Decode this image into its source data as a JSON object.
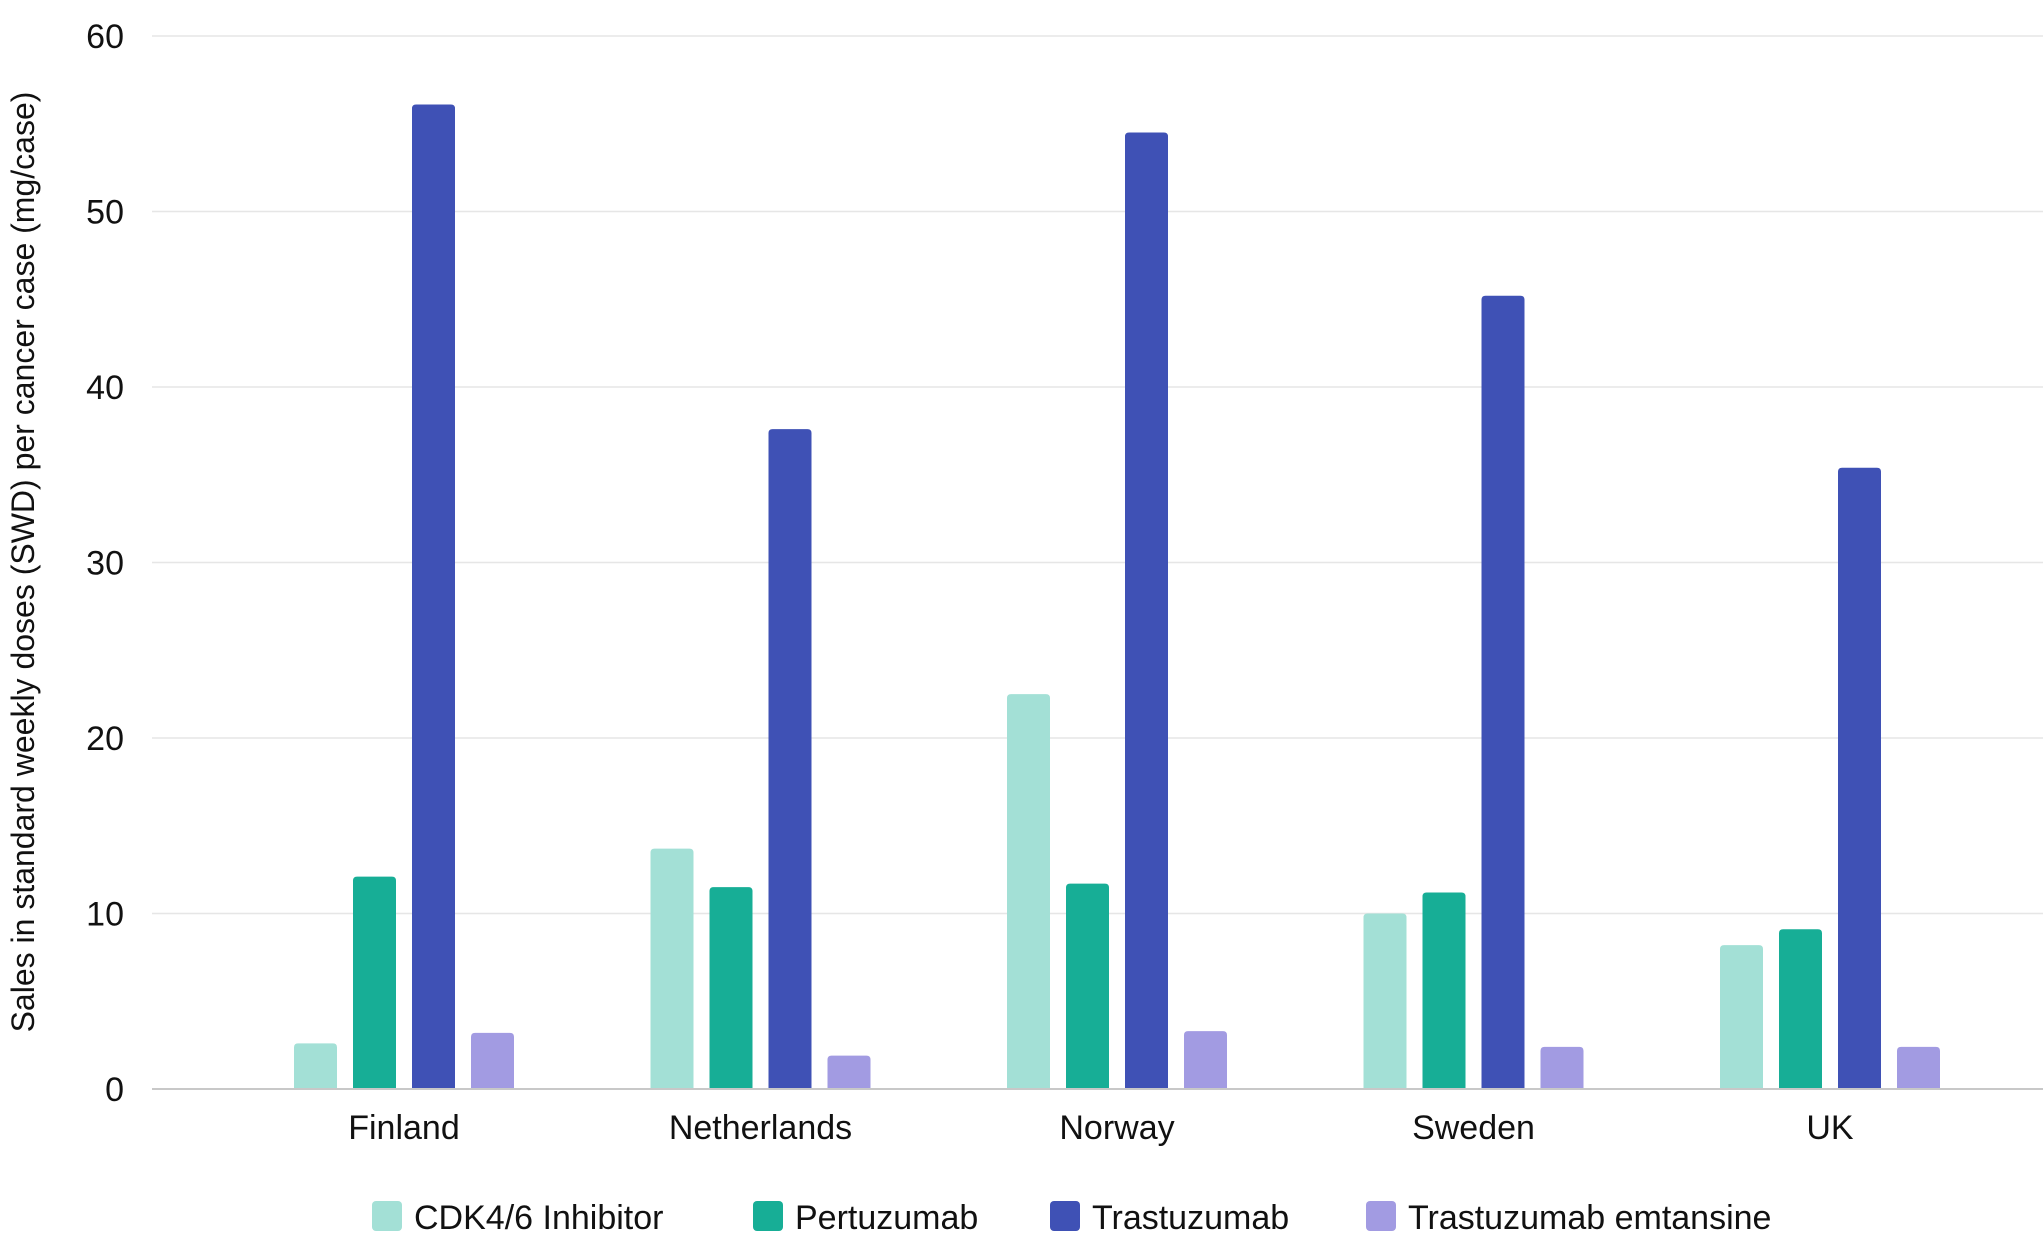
{
  "chart_data": {
    "type": "bar",
    "title": "",
    "xlabel": "",
    "ylabel": "Sales in standard weekly doses (SWD) per cancer case (mg/case)",
    "ylim": [
      0,
      60
    ],
    "yticks": [
      0,
      10,
      20,
      30,
      40,
      50,
      60
    ],
    "grid": true,
    "legend_position": "bottom",
    "categories": [
      "Finland",
      "Netherlands",
      "Norway",
      "Sweden",
      "UK"
    ],
    "series": [
      {
        "name": "CDK4/6 Inhibitor",
        "color": "#a3e0d6",
        "values": [
          2.6,
          13.7,
          22.5,
          10.0,
          8.2
        ]
      },
      {
        "name": "Pertuzumab",
        "color": "#17ae96",
        "values": [
          12.1,
          11.5,
          11.7,
          11.2,
          9.1
        ]
      },
      {
        "name": "Trastuzumab",
        "color": "#3f51b5",
        "values": [
          56.1,
          37.6,
          54.5,
          45.2,
          35.4
        ]
      },
      {
        "name": "Trastuzumab emtansine",
        "color": "#a29be2",
        "values": [
          3.2,
          1.9,
          3.3,
          2.4,
          2.4
        ]
      }
    ]
  }
}
